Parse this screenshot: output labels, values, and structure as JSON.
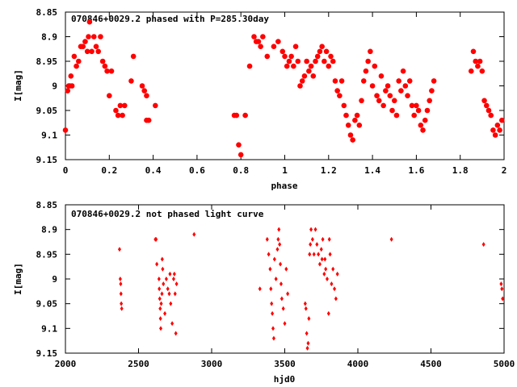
{
  "colors": {
    "points": "#ff0000",
    "axes": "#000000",
    "background": "#ffffff"
  },
  "chart_data": [
    {
      "type": "scatter",
      "title": "070846+0029.2 phased with P=285.30day",
      "xlabel": "phase",
      "ylabel": "I[mag]",
      "xlim": [
        0,
        2
      ],
      "ylim": [
        9.15,
        8.85
      ],
      "y_inverted": true,
      "grid": false,
      "xticks": [
        "0",
        "0.2",
        "0.4",
        "0.6",
        "0.8",
        "1",
        "1.2",
        "1.4",
        "1.6",
        "1.8",
        "2"
      ],
      "yticks": [
        "8.85",
        "8.9",
        "8.95",
        "9",
        "9.05",
        "9.1",
        "9.15"
      ],
      "marker": "filled-dot-large",
      "series": [
        {
          "points": [
            [
              0.0,
              9.09
            ],
            [
              0.01,
              9.01
            ],
            [
              0.015,
              9.0
            ],
            [
              0.02,
              9.0
            ],
            [
              0.025,
              8.98
            ],
            [
              0.03,
              9.0
            ],
            [
              0.04,
              8.94
            ],
            [
              0.05,
              8.96
            ],
            [
              0.06,
              8.95
            ],
            [
              0.07,
              8.92
            ],
            [
              0.08,
              8.92
            ],
            [
              0.09,
              8.91
            ],
            [
              0.1,
              8.93
            ],
            [
              0.105,
              8.9
            ],
            [
              0.11,
              8.87
            ],
            [
              0.12,
              8.93
            ],
            [
              0.13,
              8.9
            ],
            [
              0.14,
              8.92
            ],
            [
              0.15,
              8.93
            ],
            [
              0.16,
              8.9
            ],
            [
              0.17,
              8.95
            ],
            [
              0.18,
              8.96
            ],
            [
              0.19,
              8.97
            ],
            [
              0.2,
              9.02
            ],
            [
              0.21,
              8.97
            ],
            [
              0.23,
              9.05
            ],
            [
              0.24,
              9.06
            ],
            [
              0.25,
              9.04
            ],
            [
              0.26,
              9.06
            ],
            [
              0.27,
              9.04
            ],
            [
              0.3,
              8.99
            ],
            [
              0.31,
              8.94
            ],
            [
              0.35,
              9.0
            ],
            [
              0.36,
              9.01
            ],
            [
              0.37,
              9.02
            ],
            [
              0.37,
              9.07
            ],
            [
              0.38,
              9.07
            ],
            [
              0.41,
              9.04
            ],
            [
              0.77,
              9.06
            ],
            [
              0.78,
              9.06
            ],
            [
              0.79,
              9.12
            ],
            [
              0.8,
              9.14
            ],
            [
              0.82,
              9.06
            ],
            [
              0.84,
              8.96
            ],
            [
              0.86,
              8.9
            ],
            [
              0.87,
              8.91
            ],
            [
              0.88,
              8.91
            ],
            [
              0.89,
              8.92
            ],
            [
              0.9,
              8.9
            ],
            [
              0.92,
              8.94
            ],
            [
              0.95,
              8.92
            ],
            [
              0.97,
              8.91
            ],
            [
              0.99,
              8.93
            ],
            [
              1.0,
              8.94
            ],
            [
              1.01,
              8.96
            ],
            [
              1.02,
              8.95
            ],
            [
              1.03,
              8.94
            ],
            [
              1.04,
              8.96
            ],
            [
              1.05,
              8.92
            ],
            [
              1.06,
              8.95
            ],
            [
              1.07,
              9.0
            ],
            [
              1.08,
              8.99
            ],
            [
              1.09,
              8.98
            ],
            [
              1.1,
              8.95
            ],
            [
              1.11,
              8.97
            ],
            [
              1.12,
              8.96
            ],
            [
              1.13,
              8.98
            ],
            [
              1.14,
              8.95
            ],
            [
              1.15,
              8.94
            ],
            [
              1.16,
              8.93
            ],
            [
              1.17,
              8.92
            ],
            [
              1.18,
              8.95
            ],
            [
              1.19,
              8.93
            ],
            [
              1.2,
              8.96
            ],
            [
              1.21,
              8.94
            ],
            [
              1.22,
              8.95
            ],
            [
              1.23,
              8.99
            ],
            [
              1.24,
              9.01
            ],
            [
              1.25,
              9.02
            ],
            [
              1.26,
              8.99
            ],
            [
              1.27,
              9.04
            ],
            [
              1.28,
              9.06
            ],
            [
              1.29,
              9.08
            ],
            [
              1.3,
              9.1
            ],
            [
              1.31,
              9.11
            ],
            [
              1.32,
              9.07
            ],
            [
              1.33,
              9.06
            ],
            [
              1.34,
              9.08
            ],
            [
              1.35,
              9.03
            ],
            [
              1.36,
              8.99
            ],
            [
              1.37,
              8.97
            ],
            [
              1.38,
              8.95
            ],
            [
              1.39,
              8.93
            ],
            [
              1.4,
              9.0
            ],
            [
              1.41,
              8.96
            ],
            [
              1.42,
              9.02
            ],
            [
              1.43,
              9.03
            ],
            [
              1.44,
              8.98
            ],
            [
              1.45,
              9.04
            ],
            [
              1.46,
              9.01
            ],
            [
              1.47,
              9.0
            ],
            [
              1.48,
              9.02
            ],
            [
              1.49,
              9.05
            ],
            [
              1.5,
              9.03
            ],
            [
              1.51,
              9.06
            ],
            [
              1.52,
              8.99
            ],
            [
              1.53,
              9.01
            ],
            [
              1.54,
              8.97
            ],
            [
              1.55,
              9.0
            ],
            [
              1.56,
              9.02
            ],
            [
              1.57,
              8.99
            ],
            [
              1.58,
              9.04
            ],
            [
              1.59,
              9.06
            ],
            [
              1.6,
              9.04
            ],
            [
              1.61,
              9.05
            ],
            [
              1.62,
              9.08
            ],
            [
              1.63,
              9.09
            ],
            [
              1.64,
              9.07
            ],
            [
              1.65,
              9.05
            ],
            [
              1.66,
              9.03
            ],
            [
              1.67,
              9.01
            ],
            [
              1.68,
              8.99
            ],
            [
              1.85,
              8.97
            ],
            [
              1.86,
              8.93
            ],
            [
              1.87,
              8.95
            ],
            [
              1.88,
              8.96
            ],
            [
              1.89,
              8.95
            ],
            [
              1.9,
              8.97
            ],
            [
              1.91,
              9.03
            ],
            [
              1.92,
              9.04
            ],
            [
              1.93,
              9.05
            ],
            [
              1.94,
              9.06
            ],
            [
              1.95,
              9.09
            ],
            [
              1.96,
              9.1
            ],
            [
              1.97,
              9.08
            ],
            [
              1.98,
              9.09
            ],
            [
              1.99,
              9.07
            ]
          ]
        }
      ]
    },
    {
      "type": "scatter",
      "title": "070846+0029.2 not phased light curve",
      "xlabel": "hjd0",
      "ylabel": "I[mag]",
      "xlim": [
        2000,
        5000
      ],
      "ylim": [
        9.15,
        8.85
      ],
      "y_inverted": true,
      "grid": false,
      "xticks": [
        "2000",
        "2500",
        "3000",
        "3500",
        "4000",
        "4500",
        "5000"
      ],
      "yticks": [
        "8.85",
        "8.9",
        "8.95",
        "9",
        "9.05",
        "9.1",
        "9.15"
      ],
      "marker": "small-diamond",
      "series": [
        {
          "points": [
            [
              2370,
              8.94
            ],
            [
              2375,
              9.0
            ],
            [
              2378,
              9.01
            ],
            [
              2380,
              9.03
            ],
            [
              2382,
              9.05
            ],
            [
              2385,
              9.06
            ],
            [
              2615,
              8.92
            ],
            [
              2620,
              8.92
            ],
            [
              2625,
              8.97
            ],
            [
              2640,
              9.0
            ],
            [
              2642,
              9.02
            ],
            [
              2645,
              9.04
            ],
            [
              2648,
              9.06
            ],
            [
              2650,
              9.08
            ],
            [
              2652,
              9.1
            ],
            [
              2655,
              9.05
            ],
            [
              2660,
              9.03
            ],
            [
              2662,
              8.96
            ],
            [
              2665,
              8.98
            ],
            [
              2670,
              9.01
            ],
            [
              2680,
              9.07
            ],
            [
              2690,
              9.0
            ],
            [
              2700,
              9.02
            ],
            [
              2710,
              9.03
            ],
            [
              2715,
              8.99
            ],
            [
              2720,
              9.05
            ],
            [
              2730,
              9.09
            ],
            [
              2740,
              9.0
            ],
            [
              2745,
              8.99
            ],
            [
              2750,
              9.03
            ],
            [
              2755,
              9.11
            ],
            [
              2760,
              9.01
            ],
            [
              2880,
              8.91
            ],
            [
              3330,
              9.02
            ],
            [
              3380,
              8.92
            ],
            [
              3390,
              8.95
            ],
            [
              3400,
              8.98
            ],
            [
              3405,
              9.02
            ],
            [
              3410,
              9.05
            ],
            [
              3415,
              9.07
            ],
            [
              3420,
              9.1
            ],
            [
              3425,
              9.12
            ],
            [
              3430,
              8.96
            ],
            [
              3440,
              9.0
            ],
            [
              3450,
              8.94
            ],
            [
              3455,
              8.92
            ],
            [
              3460,
              8.9
            ],
            [
              3465,
              8.93
            ],
            [
              3470,
              8.97
            ],
            [
              3475,
              9.01
            ],
            [
              3480,
              9.04
            ],
            [
              3490,
              9.06
            ],
            [
              3500,
              9.09
            ],
            [
              3510,
              8.98
            ],
            [
              3520,
              9.03
            ],
            [
              3640,
              9.05
            ],
            [
              3645,
              9.06
            ],
            [
              3650,
              9.11
            ],
            [
              3655,
              9.14
            ],
            [
              3660,
              9.13
            ],
            [
              3665,
              9.08
            ],
            [
              3670,
              8.95
            ],
            [
              3675,
              8.93
            ],
            [
              3680,
              8.9
            ],
            [
              3690,
              8.92
            ],
            [
              3700,
              8.95
            ],
            [
              3710,
              8.9
            ],
            [
              3720,
              8.93
            ],
            [
              3730,
              8.95
            ],
            [
              3740,
              8.97
            ],
            [
              3750,
              8.94
            ],
            [
              3755,
              8.96
            ],
            [
              3760,
              8.92
            ],
            [
              3770,
              8.99
            ],
            [
              3775,
              8.96
            ],
            [
              3780,
              8.98
            ],
            [
              3790,
              9.0
            ],
            [
              3800,
              9.07
            ],
            [
              3805,
              8.92
            ],
            [
              3810,
              8.95
            ],
            [
              3820,
              9.01
            ],
            [
              3830,
              8.98
            ],
            [
              3840,
              9.02
            ],
            [
              3850,
              9.04
            ],
            [
              3860,
              8.99
            ],
            [
              4230,
              8.92
            ],
            [
              4860,
              8.93
            ],
            [
              4980,
              9.01
            ],
            [
              4985,
              9.02
            ],
            [
              4990,
              9.04
            ]
          ]
        }
      ]
    }
  ]
}
